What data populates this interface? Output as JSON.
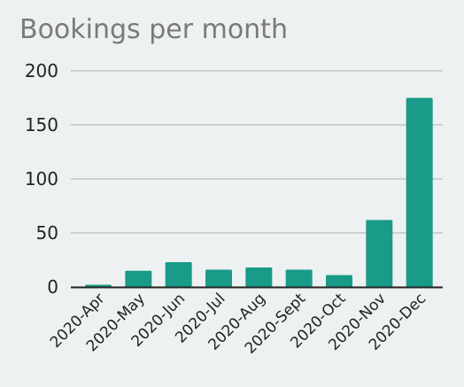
{
  "chart_data": {
    "type": "bar",
    "title": "Bookings per month",
    "categories": [
      "2020-Apr",
      "2020-May",
      "2020-Jun",
      "2020-Jul",
      "2020-Aug",
      "2020-Sept",
      "2020-Oct",
      "2020-Nov",
      "2020-Dec"
    ],
    "values": [
      2,
      15,
      23,
      16,
      18,
      16,
      11,
      62,
      175
    ],
    "ylim": [
      0,
      200
    ],
    "yticks": [
      0,
      50,
      100,
      150,
      200
    ],
    "grid": true,
    "colors": {
      "bar": "#1a9a88",
      "grid": "#b8bcbc",
      "axis": "#222222",
      "title": "#7a7a7a",
      "background": "#eef1f1"
    }
  }
}
